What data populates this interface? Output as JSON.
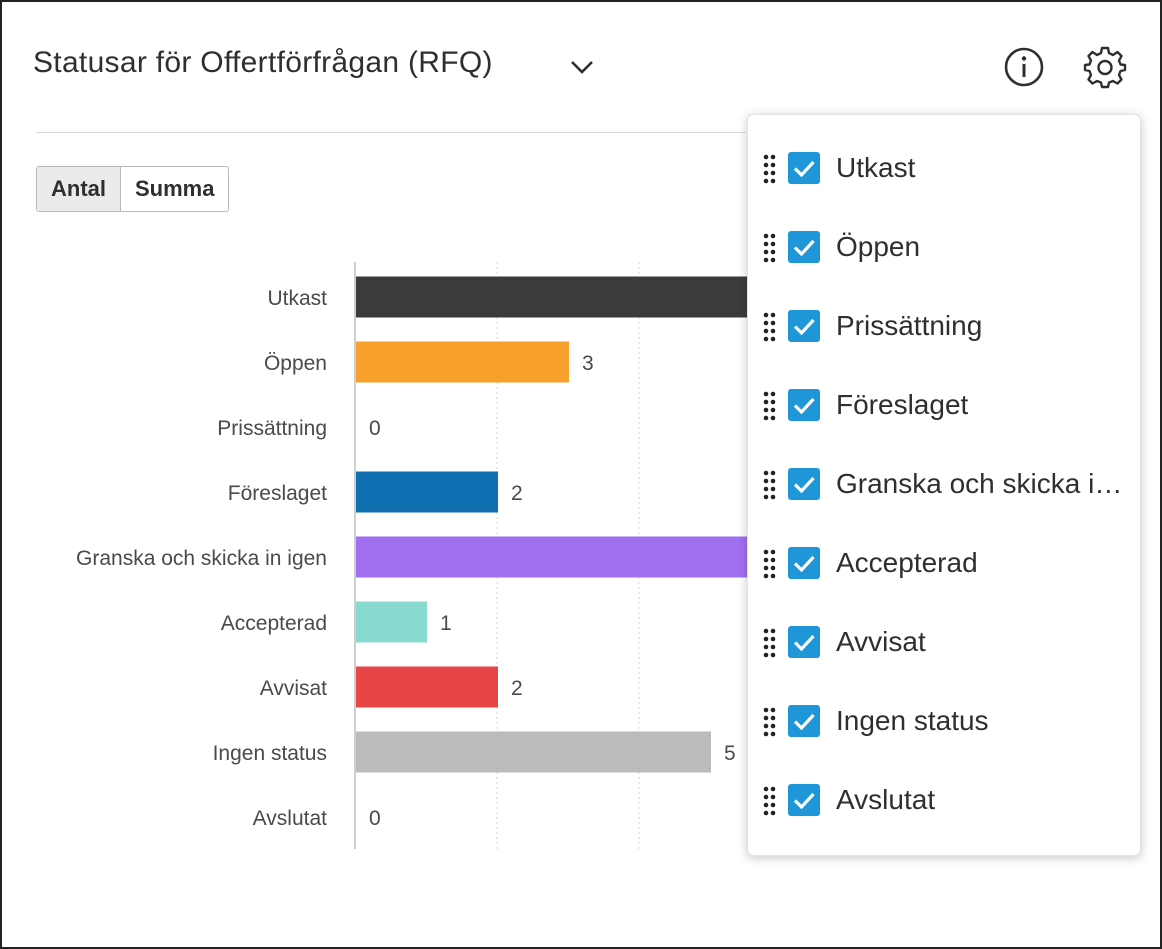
{
  "header": {
    "title": "Statusar för Offertförfrågan (RFQ)",
    "icons": [
      "chevron-down-icon",
      "info-icon",
      "gear-icon"
    ]
  },
  "toggle": {
    "antal": "Antal",
    "summa": "Summa",
    "active": "Antal"
  },
  "chart_data": {
    "type": "bar",
    "orientation": "horizontal",
    "categories": [
      "Utkast",
      "Öppen",
      "Prissättning",
      "Föreslaget",
      "Granska och skicka in igen",
      "Accepterad",
      "Avvisat",
      "Ingen status",
      "Avslutat"
    ],
    "values": [
      null,
      3,
      0,
      2,
      null,
      1,
      2,
      5,
      0
    ],
    "value_labels": [
      "",
      "3",
      "0",
      "2",
      "",
      "1",
      "2",
      "5",
      "0"
    ],
    "colors": [
      "#3b3b3b",
      "#f7a12c",
      "#cccccc",
      "#0f6fb0",
      "#a070f0",
      "#88d9cf",
      "#e84646",
      "#bbbbbb",
      "#cccccc"
    ],
    "grid": true
  },
  "popover": {
    "items": [
      {
        "label": "Utkast",
        "checked": true
      },
      {
        "label": "Öppen",
        "checked": true
      },
      {
        "label": "Prissättning",
        "checked": true
      },
      {
        "label": "Föreslaget",
        "checked": true
      },
      {
        "label": "Granska och skicka in igen",
        "checked": true
      },
      {
        "label": "Accepterad",
        "checked": true
      },
      {
        "label": "Avvisat",
        "checked": true
      },
      {
        "label": "Ingen status",
        "checked": true
      },
      {
        "label": "Avslutat",
        "checked": true
      }
    ]
  }
}
